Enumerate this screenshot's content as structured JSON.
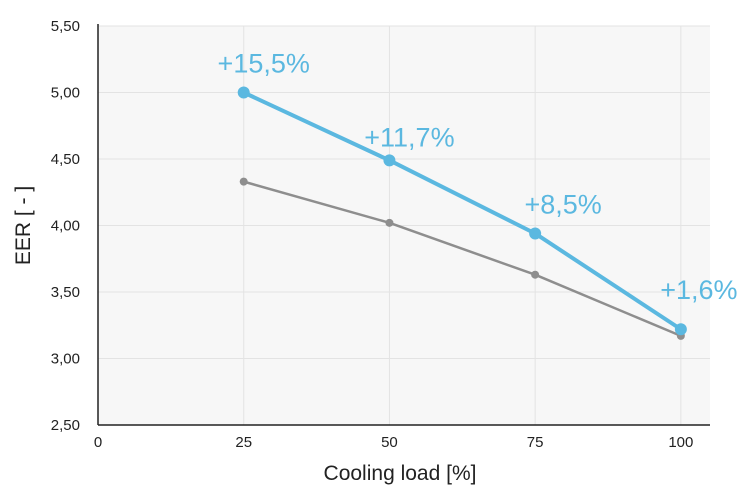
{
  "chart_data": {
    "type": "line",
    "xlabel": "Cooling load [%]",
    "ylabel": "EER  [ - ]",
    "xlim": [
      0,
      105
    ],
    "ylim": [
      2.5,
      5.5
    ],
    "x_ticks": [
      0,
      25,
      50,
      75,
      100
    ],
    "x_tick_labels": [
      "0",
      "25",
      "50",
      "75",
      "100"
    ],
    "y_ticks": [
      2.5,
      3.0,
      3.5,
      4.0,
      4.5,
      5.0,
      5.5
    ],
    "y_tick_labels": [
      "2,50",
      "3,00",
      "3,50",
      "4,00",
      "4,50",
      "5,00",
      "5,50"
    ],
    "grid": true,
    "series": [
      {
        "color": "#8e8e8e",
        "x": [
          25,
          50,
          75,
          100
        ],
        "y": [
          4.33,
          4.02,
          3.63,
          3.17
        ]
      },
      {
        "color": "#5bb8e0",
        "x": [
          25,
          50,
          75,
          100
        ],
        "y": [
          5.0,
          4.49,
          3.94,
          3.22
        ],
        "labels": [
          "+15,5%",
          "+11,7%",
          "+8,5%",
          "+1,6%"
        ]
      }
    ],
    "colors": {
      "plot_background": "#f7f7f7",
      "grid": "#e3e3e3",
      "axis": "#222222",
      "label_color": "#5bb8e0"
    }
  }
}
